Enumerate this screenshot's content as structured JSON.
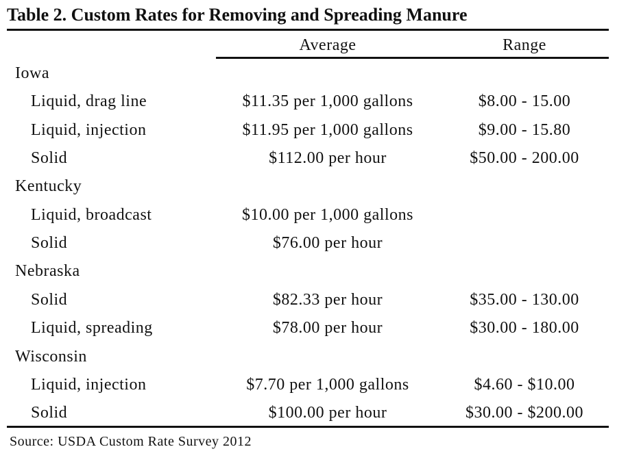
{
  "title": "Table 2. Custom Rates for Removing and Spreading Manure",
  "table": {
    "columns": [
      "Average",
      "Range"
    ],
    "groups": [
      {
        "name": "Iowa",
        "rows": [
          [
            "Liquid, drag line",
            "$11.35 per 1,000 gallons",
            "$8.00 - 15.00"
          ],
          [
            "Liquid, injection",
            "$11.95 per 1,000 gallons",
            "$9.00 - 15.80"
          ],
          [
            "Solid",
            "$112.00 per hour",
            "$50.00 - 200.00"
          ]
        ]
      },
      {
        "name": "Kentucky",
        "rows": [
          [
            "Liquid, broadcast",
            "$10.00 per 1,000 gallons"
          ],
          [
            "Solid",
            "$76.00 per hour"
          ]
        ]
      },
      {
        "name": "Nebraska",
        "rows": [
          [
            "Solid",
            "$82.33 per hour",
            "$35.00 - 130.00"
          ],
          [
            "Liquid, spreading",
            "$78.00 per hour",
            "$30.00 - 180.00"
          ]
        ]
      },
      {
        "name": "Wisconsin",
        "rows": [
          [
            "Liquid, injection",
            "$7.70 per 1,000 gallons",
            "$4.60 - $10.00"
          ],
          [
            "Solid",
            "$100.00 per hour",
            "$30.00 - $200.00"
          ]
        ]
      }
    ]
  },
  "source": "Source: USDA Custom Rate Survey 2012"
}
